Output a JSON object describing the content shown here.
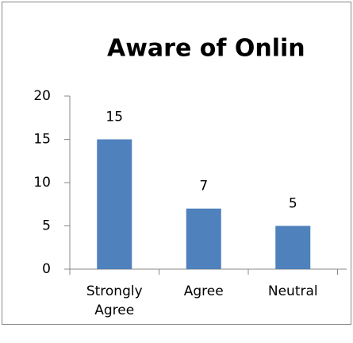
{
  "chart_data": {
    "type": "bar",
    "title": "Aware of Onlin",
    "categories": [
      "Strongly Agree",
      "Agree",
      "Neutral"
    ],
    "values": [
      15,
      7,
      5
    ],
    "color": "#4f81bd",
    "ylim": [
      0,
      20
    ],
    "yticks": [
      0,
      5,
      10,
      15,
      20
    ],
    "grid": false,
    "data_labels": true
  }
}
